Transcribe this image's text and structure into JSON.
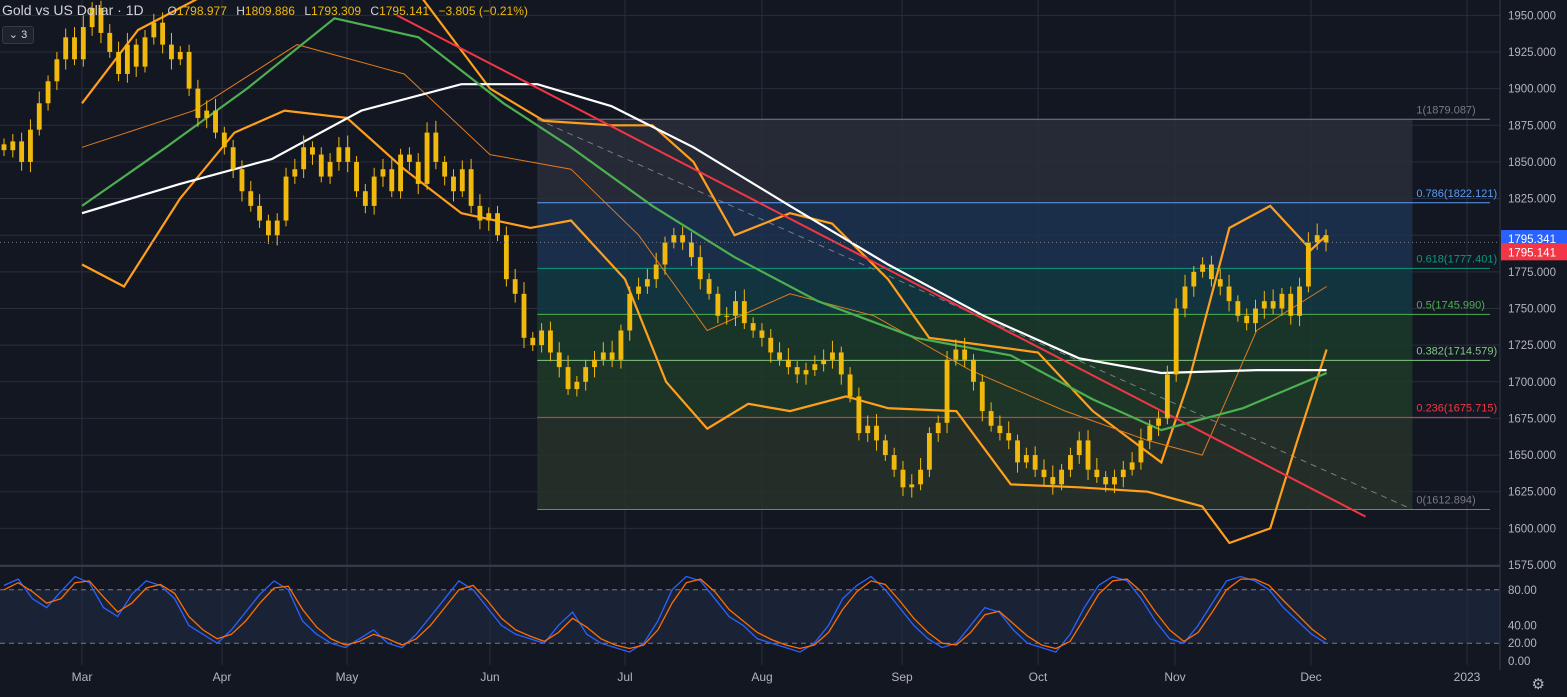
{
  "header": {
    "symbol": "Gold vs US Dollar · 1D",
    "open_label": "O",
    "open": "1798.977",
    "high_label": "H",
    "high": "1809.886",
    "low_label": "L",
    "low": "1793.309",
    "close_label": "C",
    "close": "1795.141",
    "change": "−3.805 (−0.21%)",
    "indicator_toggle": "⌄ 3"
  },
  "colors": {
    "background": "#131722",
    "grid": "#2a2e39",
    "candle": "#f0b90b",
    "sma50": "#4caf50",
    "sma200": "#ffffff",
    "bollinger": "#ff9f1c",
    "trendline": "#f23645",
    "stoch_k": "#2962ff",
    "stoch_d": "#ff6d00",
    "current_price_bg": "#f23645",
    "last_price_bg": "#2962ff"
  },
  "icons": {
    "settings": "gear-icon"
  },
  "chart_data": [
    {
      "type": "candlestick",
      "title": "Gold vs US Dollar",
      "timeframe": "1D",
      "x_tick_labels": [
        "Mar",
        "Apr",
        "May",
        "Jun",
        "Jul",
        "Aug",
        "Sep",
        "Oct",
        "Nov",
        "Dec",
        "2023"
      ],
      "y_tick_labels": [
        "1950.000",
        "1925.000",
        "1900.000",
        "1875.000",
        "1850.000",
        "1825.000",
        "1800.000",
        "1775.000",
        "1750.000",
        "1725.000",
        "1700.000",
        "1675.000",
        "1650.000",
        "1625.000",
        "1600.000",
        "1575.000"
      ],
      "ylim": [
        1575,
        1955
      ],
      "price_labels": {
        "last": "1795.341",
        "current": "1795.141"
      },
      "closes": [
        1858,
        1864,
        1850,
        1872,
        1890,
        1905,
        1920,
        1935,
        1920,
        1942,
        1955,
        1938,
        1925,
        1910,
        1930,
        1915,
        1935,
        1945,
        1930,
        1920,
        1925,
        1900,
        1880,
        1885,
        1870,
        1860,
        1845,
        1830,
        1820,
        1810,
        1800,
        1810,
        1840,
        1845,
        1860,
        1855,
        1840,
        1850,
        1860,
        1850,
        1830,
        1820,
        1840,
        1845,
        1830,
        1855,
        1850,
        1835,
        1870,
        1850,
        1840,
        1830,
        1845,
        1820,
        1810,
        1815,
        1800,
        1770,
        1760,
        1730,
        1725,
        1735,
        1720,
        1710,
        1695,
        1700,
        1710,
        1715,
        1720,
        1715,
        1735,
        1760,
        1765,
        1770,
        1780,
        1795,
        1800,
        1795,
        1785,
        1770,
        1760,
        1745,
        1745,
        1755,
        1740,
        1735,
        1730,
        1720,
        1715,
        1710,
        1705,
        1708,
        1712,
        1715,
        1720,
        1705,
        1690,
        1665,
        1670,
        1660,
        1650,
        1640,
        1628,
        1630,
        1640,
        1665,
        1672,
        1715,
        1722,
        1715,
        1700,
        1680,
        1670,
        1665,
        1660,
        1645,
        1650,
        1640,
        1635,
        1630,
        1640,
        1650,
        1660,
        1640,
        1635,
        1630,
        1635,
        1640,
        1645,
        1660,
        1670,
        1675,
        1705,
        1750,
        1765,
        1775,
        1780,
        1770,
        1765,
        1755,
        1745,
        1740,
        1750,
        1755,
        1750,
        1760,
        1745,
        1765,
        1795,
        1800,
        1795
      ],
      "fibonacci": [
        {
          "level": "1(1879.087)",
          "price": 1879.087
        },
        {
          "level": "0.786(1822.121)",
          "price": 1822.121
        },
        {
          "level": "0.618(1777.401)",
          "price": 1777.401
        },
        {
          "level": "0.5(1745.990)",
          "price": 1745.99
        },
        {
          "level": "0.382(1714.579)",
          "price": 1714.579
        },
        {
          "level": "0.236(1675.715)",
          "price": 1675.715
        },
        {
          "level": "0(1612.894)",
          "price": 1612.894
        }
      ],
      "fibonacci_range": {
        "start_month_index": 3.35,
        "end_month_index": 9.65
      },
      "trendline": {
        "from": {
          "month": 2.35,
          "price": 1950
        },
        "to": {
          "month": 9.35,
          "price": 1608
        }
      },
      "sma200": [
        [
          0,
          1815
        ],
        [
          0.7,
          1835
        ],
        [
          1.4,
          1852
        ],
        [
          2.1,
          1885
        ],
        [
          2.8,
          1903
        ],
        [
          3.35,
          1903
        ],
        [
          3.9,
          1888
        ],
        [
          4.5,
          1860
        ],
        [
          5.2,
          1820
        ],
        [
          5.9,
          1780
        ],
        [
          6.6,
          1745
        ],
        [
          7.3,
          1716
        ],
        [
          7.9,
          1706
        ],
        [
          8.6,
          1708
        ],
        [
          9.1,
          1708
        ]
      ],
      "sma50": [
        [
          0,
          1820
        ],
        [
          0.6,
          1860
        ],
        [
          1.2,
          1900
        ],
        [
          1.9,
          1948
        ],
        [
          2.5,
          1935
        ],
        [
          3.1,
          1890
        ],
        [
          3.6,
          1860
        ],
        [
          4.2,
          1820
        ],
        [
          4.8,
          1785
        ],
        [
          5.4,
          1755
        ],
        [
          6.1,
          1730
        ],
        [
          6.8,
          1718
        ],
        [
          7.4,
          1688
        ],
        [
          7.9,
          1667
        ],
        [
          8.5,
          1682
        ],
        [
          9.1,
          1706
        ]
      ],
      "bollinger_upper": [
        [
          0,
          1890
        ],
        [
          0.4,
          1940
        ],
        [
          0.9,
          1965
        ],
        [
          1.4,
          1970
        ],
        [
          1.9,
          1970
        ],
        [
          2.5,
          1965
        ],
        [
          3.0,
          1900
        ],
        [
          3.4,
          1878
        ],
        [
          3.9,
          1875
        ],
        [
          4.2,
          1875
        ],
        [
          4.5,
          1850
        ],
        [
          4.8,
          1800
        ],
        [
          5.2,
          1815
        ],
        [
          5.5,
          1808
        ],
        [
          5.9,
          1770
        ],
        [
          6.2,
          1730
        ],
        [
          6.6,
          1725
        ],
        [
          7.0,
          1720
        ],
        [
          7.4,
          1680
        ],
        [
          7.9,
          1645
        ],
        [
          8.1,
          1700
        ],
        [
          8.4,
          1805
        ],
        [
          8.7,
          1820
        ],
        [
          9.0,
          1790
        ],
        [
          9.1,
          1800
        ]
      ],
      "bollinger_lower": [
        [
          0,
          1780
        ],
        [
          0.3,
          1765
        ],
        [
          0.7,
          1825
        ],
        [
          1.1,
          1870
        ],
        [
          1.5,
          1885
        ],
        [
          2.0,
          1880
        ],
        [
          2.4,
          1845
        ],
        [
          2.8,
          1815
        ],
        [
          3.3,
          1805
        ],
        [
          3.6,
          1810
        ],
        [
          4.0,
          1770
        ],
        [
          4.3,
          1700
        ],
        [
          4.6,
          1668
        ],
        [
          4.9,
          1685
        ],
        [
          5.2,
          1680
        ],
        [
          5.6,
          1690
        ],
        [
          5.9,
          1682
        ],
        [
          6.4,
          1680
        ],
        [
          6.8,
          1630
        ],
        [
          7.3,
          1628
        ],
        [
          7.8,
          1625
        ],
        [
          8.2,
          1615
        ],
        [
          8.4,
          1590
        ],
        [
          8.7,
          1600
        ],
        [
          8.9,
          1660
        ],
        [
          9.1,
          1722
        ]
      ],
      "bollinger_basis": [
        [
          0,
          1860
        ],
        [
          0.8,
          1885
        ],
        [
          1.6,
          1930
        ],
        [
          2.4,
          1910
        ],
        [
          3.0,
          1855
        ],
        [
          3.6,
          1845
        ],
        [
          4.1,
          1800
        ],
        [
          4.6,
          1735
        ],
        [
          5.2,
          1760
        ],
        [
          5.8,
          1745
        ],
        [
          6.5,
          1708
        ],
        [
          7.2,
          1680
        ],
        [
          7.8,
          1660
        ],
        [
          8.2,
          1650
        ],
        [
          8.6,
          1735
        ],
        [
          9.1,
          1765
        ]
      ]
    },
    {
      "type": "line",
      "title": "Stochastic",
      "y_tick_labels": [
        "80.00",
        "40.00",
        "20.00",
        "0.00"
      ],
      "ylim": [
        0,
        100
      ],
      "bands": [
        80,
        20
      ],
      "series": [
        {
          "values": [
            85,
            92,
            70,
            60,
            78,
            95,
            88,
            60,
            50,
            75,
            90,
            85,
            70,
            40,
            30,
            20,
            35,
            55,
            75,
            90,
            80,
            45,
            30,
            20,
            15,
            25,
            35,
            20,
            15,
            30,
            50,
            70,
            90,
            80,
            60,
            40,
            30,
            25,
            20,
            40,
            55,
            30,
            20,
            15,
            10,
            20,
            45,
            80,
            95,
            90,
            70,
            50,
            40,
            25,
            20,
            15,
            10,
            20,
            40,
            70,
            85,
            95,
            80,
            60,
            40,
            25,
            15,
            20,
            40,
            60,
            55,
            35,
            20,
            15,
            10,
            30,
            60,
            85,
            95,
            90,
            70,
            45,
            25,
            20,
            40,
            65,
            90,
            95,
            90,
            80,
            60,
            45,
            30,
            20
          ]
        },
        {
          "values": [
            80,
            88,
            78,
            65,
            70,
            88,
            90,
            72,
            55,
            65,
            82,
            86,
            76,
            50,
            35,
            25,
            30,
            45,
            65,
            82,
            84,
            58,
            38,
            25,
            18,
            22,
            30,
            25,
            18,
            25,
            40,
            60,
            80,
            85,
            68,
            48,
            35,
            28,
            22,
            32,
            48,
            38,
            25,
            18,
            14,
            18,
            35,
            65,
            88,
            92,
            78,
            58,
            45,
            32,
            24,
            18,
            14,
            18,
            32,
            58,
            78,
            90,
            86,
            68,
            48,
            32,
            20,
            18,
            32,
            52,
            56,
            42,
            28,
            18,
            14,
            22,
            48,
            75,
            90,
            92,
            78,
            55,
            35,
            22,
            32,
            55,
            80,
            92,
            92,
            85,
            68,
            52,
            36,
            24
          ]
        }
      ]
    }
  ]
}
